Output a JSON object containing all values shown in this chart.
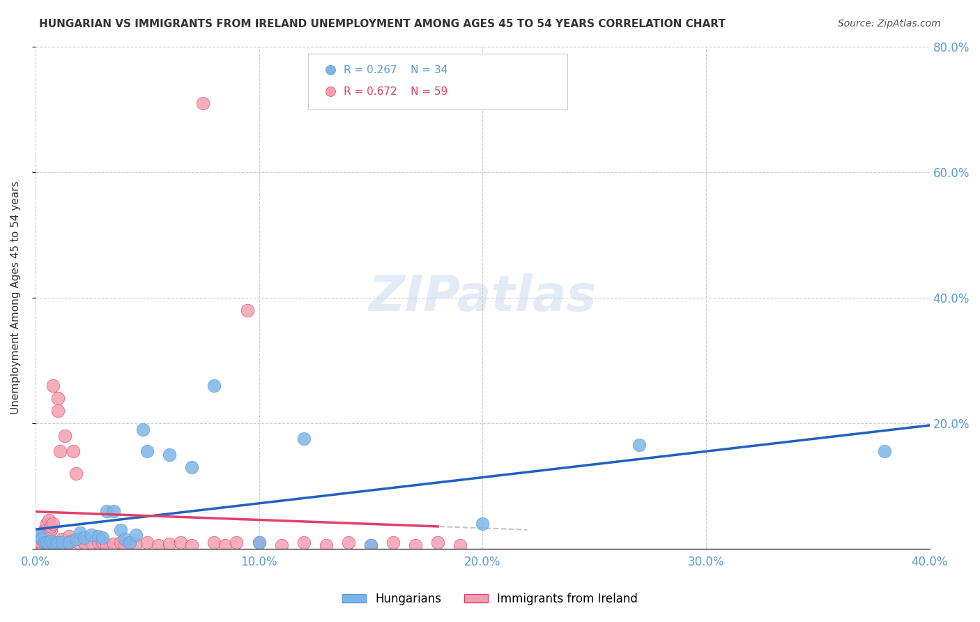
{
  "title": "HUNGARIAN VS IMMIGRANTS FROM IRELAND UNEMPLOYMENT AMONG AGES 45 TO 54 YEARS CORRELATION CHART",
  "source": "Source: ZipAtlas.com",
  "ylabel": "Unemployment Among Ages 45 to 54 years",
  "xmin": 0.0,
  "xmax": 0.4,
  "ymin": 0.0,
  "ymax": 0.8,
  "yticks": [
    0.0,
    0.2,
    0.4,
    0.6,
    0.8
  ],
  "xticks": [
    0.0,
    0.1,
    0.2,
    0.3,
    0.4
  ],
  "xtick_labels": [
    "0.0%",
    "10.0%",
    "20.0%",
    "30.0%",
    "40.0%"
  ],
  "ytick_labels": [
    "",
    "20.0%",
    "40.0%",
    "60.0%",
    "80.0%"
  ],
  "hungarian_color": "#7eb5e8",
  "ireland_color": "#f4a0b0",
  "trend_blue": "#2060c0",
  "trend_pink": "#e0406a",
  "watermark": "ZIPatlas",
  "background_color": "#ffffff",
  "hungarian_x": [
    0.002,
    0.003,
    0.004,
    0.005,
    0.006,
    0.007,
    0.008,
    0.009,
    0.01,
    0.012,
    0.015,
    0.018,
    0.02,
    0.022,
    0.025,
    0.028,
    0.03,
    0.032,
    0.035,
    0.038,
    0.04,
    0.042,
    0.045,
    0.048,
    0.05,
    0.06,
    0.07,
    0.08,
    0.1,
    0.12,
    0.15,
    0.2,
    0.27,
    0.38
  ],
  "hungarian_y": [
    0.02,
    0.015,
    0.01,
    0.01,
    0.008,
    0.012,
    0.008,
    0.005,
    0.01,
    0.01,
    0.01,
    0.015,
    0.025,
    0.018,
    0.022,
    0.02,
    0.018,
    0.06,
    0.06,
    0.03,
    0.015,
    0.01,
    0.022,
    0.19,
    0.155,
    0.15,
    0.13,
    0.26,
    0.01,
    0.175,
    0.005,
    0.04,
    0.165,
    0.155
  ],
  "ireland_x": [
    0.001,
    0.002,
    0.002,
    0.003,
    0.003,
    0.004,
    0.004,
    0.005,
    0.005,
    0.006,
    0.006,
    0.007,
    0.007,
    0.008,
    0.008,
    0.009,
    0.01,
    0.01,
    0.011,
    0.012,
    0.013,
    0.014,
    0.015,
    0.015,
    0.016,
    0.017,
    0.018,
    0.019,
    0.02,
    0.022,
    0.025,
    0.028,
    0.03,
    0.032,
    0.035,
    0.038,
    0.04,
    0.042,
    0.045,
    0.05,
    0.055,
    0.06,
    0.065,
    0.07,
    0.075,
    0.08,
    0.085,
    0.09,
    0.095,
    0.1,
    0.11,
    0.12,
    0.13,
    0.14,
    0.15,
    0.16,
    0.17,
    0.18,
    0.19
  ],
  "ireland_y": [
    0.008,
    0.01,
    0.012,
    0.015,
    0.02,
    0.025,
    0.03,
    0.035,
    0.04,
    0.045,
    0.025,
    0.03,
    0.035,
    0.04,
    0.26,
    0.01,
    0.22,
    0.24,
    0.155,
    0.015,
    0.18,
    0.01,
    0.01,
    0.02,
    0.012,
    0.155,
    0.12,
    0.01,
    0.015,
    0.01,
    0.01,
    0.01,
    0.01,
    0.005,
    0.008,
    0.01,
    0.005,
    0.01,
    0.008,
    0.01,
    0.005,
    0.008,
    0.01,
    0.005,
    0.71,
    0.01,
    0.005,
    0.01,
    0.38,
    0.01,
    0.005,
    0.01,
    0.005,
    0.01,
    0.005,
    0.01,
    0.005,
    0.01,
    0.005
  ]
}
